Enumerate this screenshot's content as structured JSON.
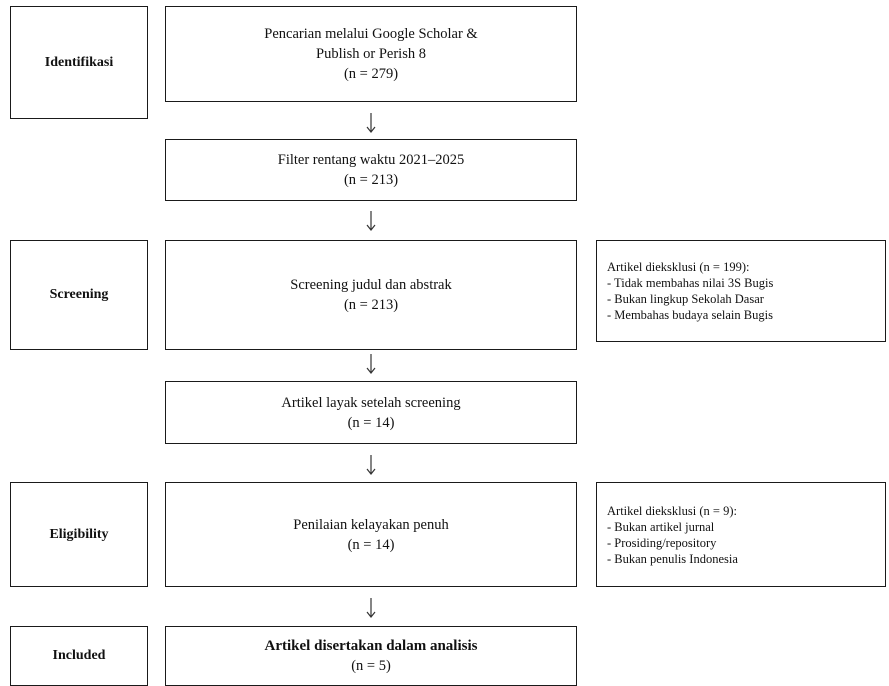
{
  "stages": {
    "identification": "Identifikasi",
    "screening": "Screening",
    "eligibility": "Eligibility",
    "included": "Included"
  },
  "steps": {
    "search": {
      "line1": "Pencarian melalui Google Scholar &",
      "line2": "Publish or Perish 8",
      "count": "(n = 279)"
    },
    "filter": {
      "line1": "Filter rentang waktu 2021–2025",
      "count": "(n = 213)"
    },
    "screen": {
      "line1": "Screening judul dan abstrak",
      "count": "(n = 213)"
    },
    "eligible_after_screening": {
      "line1": "Artikel layak setelah screening",
      "count": "(n = 14)"
    },
    "full_assessment": {
      "line1": "Penilaian kelayakan penuh",
      "count": "(n = 14)"
    },
    "included": {
      "line1": "Artikel disertakan dalam analisis",
      "count": "(n = 5)"
    }
  },
  "exclusions": {
    "screening": {
      "title": "Artikel dieksklusi (n = 199):",
      "items": [
        "- Tidak membahas nilai 3S Bugis",
        "- Bukan lingkup Sekolah Dasar",
        "- Membahas budaya selain Bugis"
      ]
    },
    "eligibility": {
      "title": "Artikel dieksklusi (n = 9):",
      "items": [
        "- Bukan artikel jurnal",
        "- Prosiding/repository",
        "- Bukan penulis Indonesia"
      ]
    }
  },
  "colors": {
    "border": "#1a1a1a",
    "arrow": "#333333",
    "background": "#ffffff"
  }
}
